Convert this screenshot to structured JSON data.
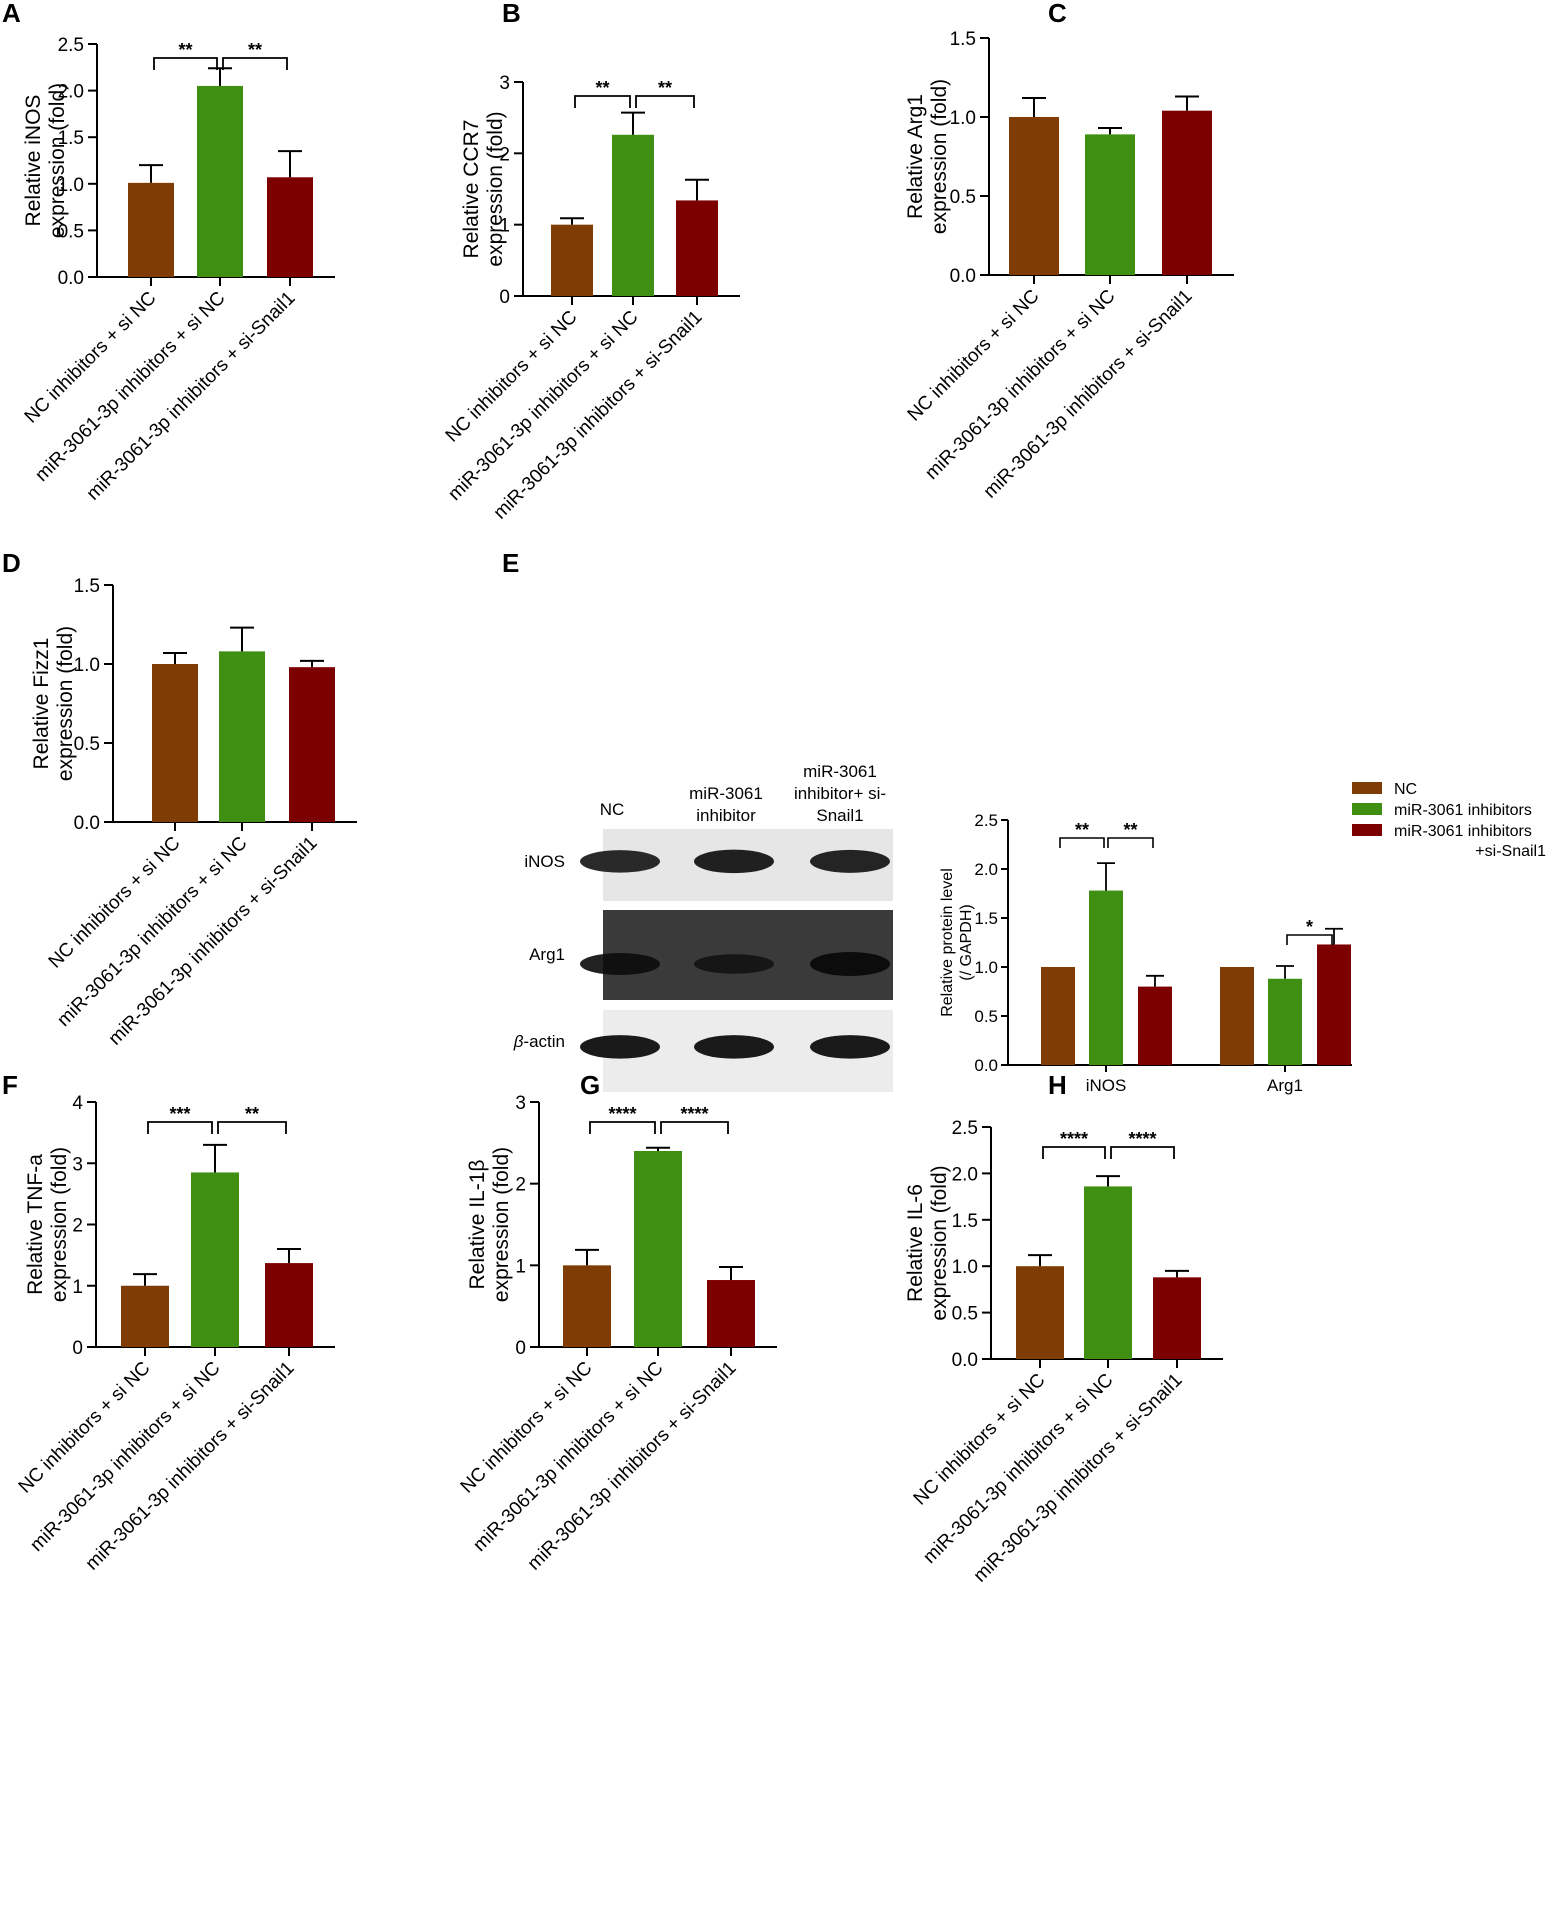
{
  "colors": {
    "brown": "#7f3c05",
    "green": "#3f8f12",
    "red": "#7d0000"
  },
  "categories": [
    "NC inhibitors + si NC",
    "miR-3061-3p inhibitors + si NC",
    "miR-3061-3p inhibitors + si-Snail1"
  ],
  "chart_data": [
    {
      "panel": "A",
      "type": "bar",
      "ylabel": [
        "Relative iNOS",
        "expression (fold)"
      ],
      "ylim": [
        0,
        2.5
      ],
      "yticks": [
        "0.0",
        "0.5",
        "1.0",
        "1.5",
        "2.0",
        "2.5"
      ],
      "values": [
        1.01,
        2.05,
        1.07
      ],
      "errors": [
        0.19,
        0.19,
        0.28
      ],
      "sig": [
        {
          "from": 0,
          "to": 1,
          "label": "**"
        },
        {
          "from": 1,
          "to": 2,
          "label": "**"
        }
      ]
    },
    {
      "panel": "B",
      "type": "bar",
      "ylabel": [
        "Relative CCR7",
        "expression (fold)"
      ],
      "ylim": [
        0,
        3
      ],
      "yticks": [
        "0",
        "1",
        "2",
        "3"
      ],
      "values": [
        1.0,
        2.26,
        1.34
      ],
      "errors": [
        0.09,
        0.31,
        0.29
      ],
      "sig": [
        {
          "from": 0,
          "to": 1,
          "label": "**"
        },
        {
          "from": 1,
          "to": 2,
          "label": "**"
        }
      ]
    },
    {
      "panel": "C",
      "type": "bar",
      "ylabel": [
        "Relative Arg1",
        "expression (fold)"
      ],
      "ylim": [
        0,
        1.5
      ],
      "yticks": [
        "0.0",
        "0.5",
        "1.0",
        "1.5"
      ],
      "values": [
        1.0,
        0.89,
        1.04
      ],
      "errors": [
        0.12,
        0.04,
        0.09
      ],
      "sig": []
    },
    {
      "panel": "D",
      "type": "bar",
      "ylabel": [
        "Relative Fizz1",
        "expression (fold)"
      ],
      "ylim": [
        0,
        1.5
      ],
      "yticks": [
        "0.0",
        "0.5",
        "1.0",
        "1.5"
      ],
      "values": [
        1.0,
        1.08,
        0.98
      ],
      "errors": [
        0.07,
        0.15,
        0.04
      ],
      "sig": []
    },
    {
      "panel": "E",
      "type": "bar",
      "ylabel": [
        "Relative protein level",
        "(/ GAPDH)"
      ],
      "ylim": [
        0,
        2.5
      ],
      "yticks": [
        "0.0",
        "0.5",
        "1.0",
        "1.5",
        "2.0",
        "2.5"
      ],
      "categories": [
        "iNOS",
        "Arg1"
      ],
      "series": [
        {
          "name": "NC",
          "values": [
            1.0,
            1.0
          ],
          "errors": [
            0,
            0
          ]
        },
        {
          "name": "miR-3061 inhibitors",
          "values": [
            1.78,
            0.88
          ],
          "errors": [
            0.28,
            0.13
          ]
        },
        {
          "name": "miR-3061 inhibitors +si-Snail1",
          "values": [
            0.8,
            1.23
          ],
          "errors": [
            0.11,
            0.16
          ]
        }
      ],
      "sig": [
        {
          "group": 0,
          "from": 0,
          "to": 1,
          "label": "**"
        },
        {
          "group": 0,
          "from": 1,
          "to": 2,
          "label": "**"
        },
        {
          "group": 1,
          "from": 1,
          "to": 2,
          "label": "*"
        }
      ]
    },
    {
      "panel": "F",
      "type": "bar",
      "ylabel": [
        "Relative TNF-a",
        "expression (fold)"
      ],
      "ylim": [
        0,
        4
      ],
      "yticks": [
        "0",
        "1",
        "2",
        "3",
        "4"
      ],
      "values": [
        1.0,
        2.85,
        1.37
      ],
      "errors": [
        0.19,
        0.45,
        0.23
      ],
      "sig": [
        {
          "from": 0,
          "to": 1,
          "label": "***"
        },
        {
          "from": 1,
          "to": 2,
          "label": "**"
        }
      ]
    },
    {
      "panel": "G",
      "type": "bar",
      "ylabel": [
        "Relative IL-1β",
        "expression (fold)"
      ],
      "ylim": [
        0,
        3
      ],
      "yticks": [
        "0",
        "1",
        "2",
        "3"
      ],
      "values": [
        1.0,
        2.4,
        0.82
      ],
      "errors": [
        0.19,
        0.04,
        0.16
      ],
      "sig": [
        {
          "from": 0,
          "to": 1,
          "label": "****"
        },
        {
          "from": 1,
          "to": 2,
          "label": "****"
        }
      ]
    },
    {
      "panel": "H",
      "type": "bar",
      "ylabel": [
        "Relative IL-6",
        "expression (fold)"
      ],
      "ylim": [
        0,
        2.5
      ],
      "yticks": [
        "0.0",
        "0.5",
        "1.0",
        "1.5",
        "2.0",
        "2.5"
      ],
      "values": [
        1.0,
        1.86,
        0.88
      ],
      "errors": [
        0.12,
        0.11,
        0.07
      ],
      "sig": [
        {
          "from": 0,
          "to": 1,
          "label": "****"
        },
        {
          "from": 1,
          "to": 2,
          "label": "****"
        }
      ]
    }
  ],
  "blot": {
    "lanes": [
      [
        "NC"
      ],
      [
        "miR-3061",
        "inhibitor"
      ],
      [
        "miR-3061",
        "inhibitor+ si-",
        "Snail1"
      ]
    ],
    "bands": [
      {
        "label": "iNOS",
        "italic_prefix": "",
        "intensity": [
          0.85,
          0.95,
          0.9
        ]
      },
      {
        "label": "Arg1",
        "italic_prefix": "",
        "intensity": [
          0.8,
          0.55,
          1.0
        ]
      },
      {
        "label": "-actin",
        "italic_prefix": "β",
        "intensity": [
          0.95,
          0.95,
          0.95
        ]
      }
    ]
  }
}
